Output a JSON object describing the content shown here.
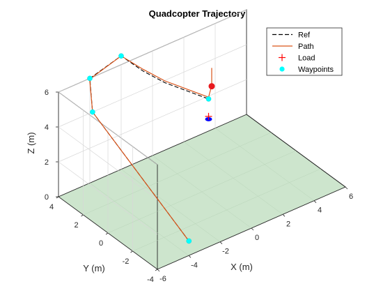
{
  "chart_data": {
    "type": "line3d",
    "title": "Quadcopter Trajectory",
    "xlabel": "X (m)",
    "ylabel": "Y (m)",
    "zlabel": "Z (m)",
    "xlim": [
      -6,
      6
    ],
    "ylim": [
      -4,
      4
    ],
    "zlim": [
      0,
      6
    ],
    "xticks": [
      -6,
      -4,
      -2,
      0,
      2,
      4,
      6
    ],
    "yticks": [
      -4,
      -2,
      0,
      2,
      4
    ],
    "zticks": [
      0,
      2,
      4,
      6
    ],
    "grid": true,
    "ground_color": "#cde5cd",
    "legend": {
      "placement": "top-right",
      "entries": [
        {
          "label": "Ref",
          "style": "dashed-line",
          "color": "#000000"
        },
        {
          "label": "Path",
          "style": "line",
          "color": "#d95319"
        },
        {
          "label": "Load",
          "style": "plus",
          "color": "#ff0000"
        },
        {
          "label": "Waypoints",
          "style": "dot",
          "color": "#00ffff"
        }
      ]
    },
    "waypoints": [
      {
        "x": -3.2,
        "y": -3.0,
        "z": 0.0
      },
      {
        "x": -4.3,
        "y": 3.4,
        "z": 4.5
      },
      {
        "x": -4.0,
        "y": 4.0,
        "z": 6.0
      },
      {
        "x": -2.0,
        "y": 4.0,
        "z": 6.5
      },
      {
        "x": 2.0,
        "y": 2.0,
        "z": 3.5
      }
    ],
    "ref_path": [
      {
        "x": -3.2,
        "y": -3.0,
        "z": 0.0
      },
      {
        "x": -4.3,
        "y": 3.4,
        "z": 4.5
      },
      {
        "x": -4.0,
        "y": 4.0,
        "z": 6.0
      },
      {
        "x": -2.0,
        "y": 4.0,
        "z": 6.5
      },
      {
        "x": -1.0,
        "y": 3.5,
        "z": 5.5
      },
      {
        "x": 0.0,
        "y": 3.0,
        "z": 4.7
      },
      {
        "x": 1.0,
        "y": 2.5,
        "z": 4.1
      },
      {
        "x": 2.0,
        "y": 2.0,
        "z": 3.5
      }
    ],
    "flight_path": [
      {
        "x": -3.2,
        "y": -3.0,
        "z": 0.0
      },
      {
        "x": -4.3,
        "y": 3.4,
        "z": 4.5
      },
      {
        "x": -4.05,
        "y": 3.95,
        "z": 6.0
      },
      {
        "x": -2.0,
        "y": 4.0,
        "z": 6.5
      },
      {
        "x": -1.0,
        "y": 3.5,
        "z": 5.6
      },
      {
        "x": 0.0,
        "y": 3.0,
        "z": 4.8
      },
      {
        "x": 1.0,
        "y": 2.5,
        "z": 4.2
      },
      {
        "x": 2.0,
        "y": 2.0,
        "z": 3.6
      },
      {
        "x": 2.2,
        "y": 2.0,
        "z": 4.2
      },
      {
        "x": 2.2,
        "y": 2.0,
        "z": 5.2
      }
    ],
    "quad_body": {
      "x": 2.2,
      "y": 2.0,
      "z": 4.15,
      "color": "#e8191e"
    },
    "load": {
      "x": 2.0,
      "y": 2.0,
      "z": 2.5,
      "color": "#ff0000",
      "base_color": "#0000ff"
    }
  }
}
